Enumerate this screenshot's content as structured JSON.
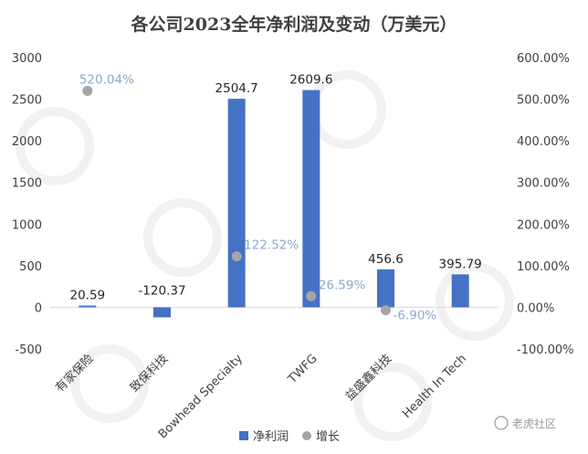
{
  "chart_data": {
    "type": "bar",
    "title": "各公司2023全年净利润及变动（万美元）",
    "categories": [
      "有家保险",
      "致保科技",
      "Bowhead Specialty",
      "TWFG",
      "益盛鑫科技",
      "Health In Tech"
    ],
    "series": [
      {
        "name": "净利润",
        "type": "bar",
        "axis": "left",
        "values": [
          20.59,
          -120.37,
          2504.7,
          2609.6,
          456.6,
          395.79
        ],
        "labels": [
          "20.59",
          "-120.37",
          "2504.7",
          "2609.6",
          "456.6",
          "395.79"
        ]
      },
      {
        "name": "增长",
        "type": "scatter",
        "axis": "right",
        "values": [
          520.04,
          null,
          122.52,
          26.59,
          -6.9,
          null
        ],
        "labels": [
          "520.04%",
          "",
          "122.52%",
          "26.59%",
          "-6.90%",
          ""
        ]
      }
    ],
    "ylim_left": [
      -500,
      3000
    ],
    "yticks_left": [
      "3000",
      "2500",
      "2000",
      "1500",
      "1000",
      "500",
      "0",
      "-500"
    ],
    "ylim_right": [
      -100,
      600
    ],
    "yticks_right": [
      "600.00%",
      "500.00%",
      "400.00%",
      "300.00%",
      "200.00%",
      "100.00%",
      "0.00%",
      "-100.00%"
    ],
    "grid": false,
    "legend_position": "bottom",
    "colors": {
      "bar": "#4472c4",
      "dot": "#a5a5a5",
      "growth_label": "#8ea9cb"
    }
  },
  "watermark": {
    "text": "老虎社区"
  }
}
